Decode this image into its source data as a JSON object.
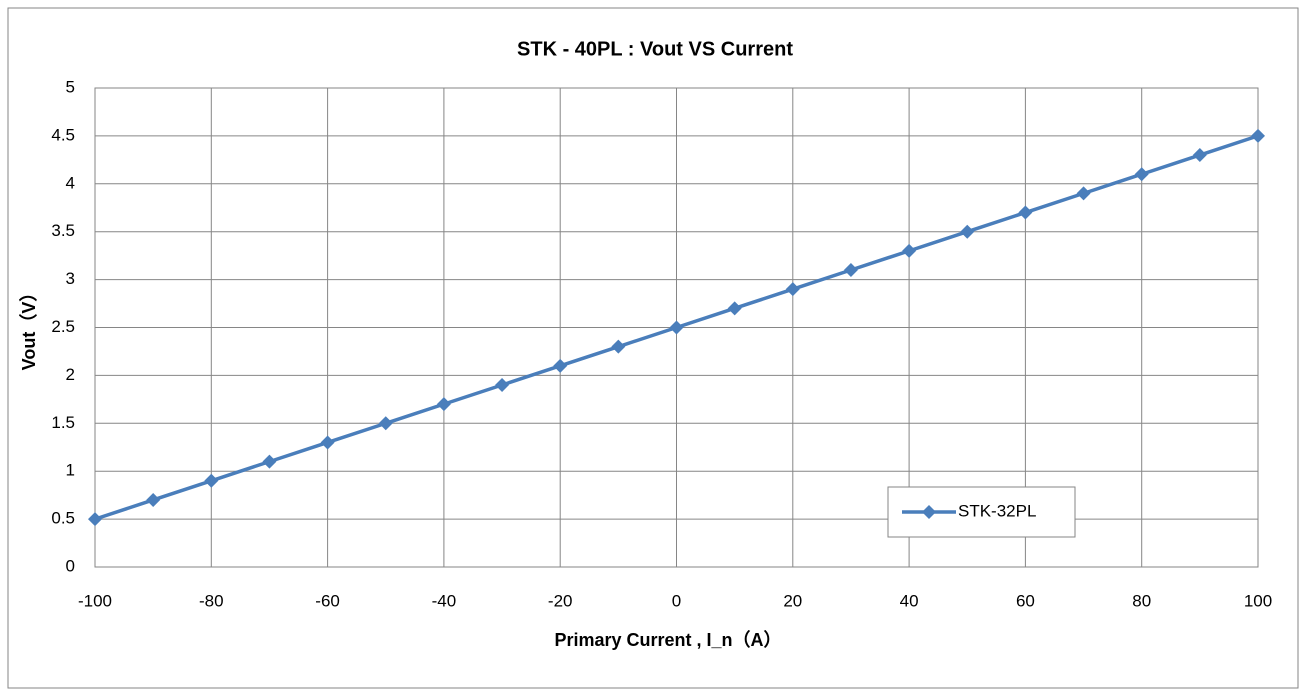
{
  "chart_data": {
    "type": "line",
    "title": "STK - 40PL : Vout VS Current",
    "x_label": "Primary Current , I_n（A）",
    "y_label": "Vout（V）",
    "x": [
      -100,
      -90,
      -80,
      -70,
      -60,
      -50,
      -40,
      -30,
      -20,
      -10,
      0,
      10,
      20,
      30,
      40,
      50,
      60,
      70,
      80,
      90,
      100
    ],
    "series": [
      {
        "name": "STK-32PL",
        "color": "#4a7ebb",
        "values": [
          0.5,
          0.7,
          0.9,
          1.1,
          1.3,
          1.5,
          1.7,
          1.9,
          2.1,
          2.3,
          2.5,
          2.7,
          2.9,
          3.1,
          3.3,
          3.5,
          3.7,
          3.9,
          4.1,
          4.3,
          4.5
        ]
      }
    ],
    "xlim": [
      -100,
      100
    ],
    "xticks": [
      -100,
      -80,
      -60,
      -40,
      -20,
      0,
      20,
      40,
      60,
      80,
      100
    ],
    "ylim": [
      0,
      5
    ],
    "yticks": [
      0,
      0.5,
      1,
      1.5,
      2,
      2.5,
      3,
      3.5,
      4,
      4.5,
      5
    ],
    "grid": true,
    "legend": "lower-right"
  }
}
